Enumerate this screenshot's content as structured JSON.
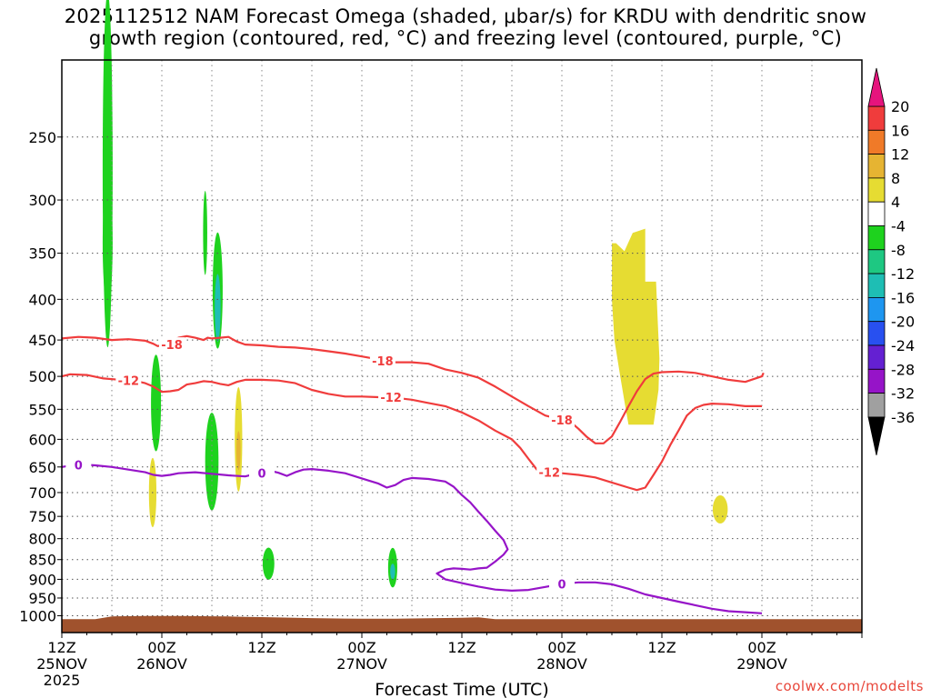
{
  "chart_data": {
    "type": "heatmap",
    "title_line1": "2025112512 NAM Forecast Omega (shaded, μbar/s) for KRDU with dendritic snow",
    "title_line2": "growth region (contoured, red, °C) and freezing level (contoured, purple, °C)",
    "xlabel": "Forecast Time (UTC)",
    "ylabel": "",
    "x_range_hours": [
      0,
      96
    ],
    "y_scale": "log-pressure",
    "y_range_hpa": [
      1050,
      200
    ],
    "grid": true,
    "x_ticks": [
      {
        "h": 0,
        "line1": "12Z",
        "line2": "25NOV",
        "line3": "2025"
      },
      {
        "h": 12,
        "line1": "00Z",
        "line2": "26NOV",
        "line3": ""
      },
      {
        "h": 24,
        "line1": "12Z",
        "line2": "",
        "line3": ""
      },
      {
        "h": 36,
        "line1": "00Z",
        "line2": "27NOV",
        "line3": ""
      },
      {
        "h": 48,
        "line1": "12Z",
        "line2": "",
        "line3": ""
      },
      {
        "h": 60,
        "line1": "00Z",
        "line2": "28NOV",
        "line3": ""
      },
      {
        "h": 72,
        "line1": "12Z",
        "line2": "",
        "line3": ""
      },
      {
        "h": 84,
        "line1": "00Z",
        "line2": "29NOV",
        "line3": ""
      }
    ],
    "y_ticks": [
      250,
      300,
      350,
      400,
      450,
      500,
      550,
      600,
      650,
      700,
      750,
      800,
      850,
      900,
      950,
      1000
    ],
    "colorbar": {
      "labels": [
        "20",
        "16",
        "12",
        "8",
        "4",
        "-4",
        "-8",
        "-12",
        "-16",
        "-20",
        "-24",
        "-28",
        "-32",
        "-36"
      ],
      "label_values": [
        20,
        16,
        12,
        8,
        4,
        -4,
        -8,
        -12,
        -16,
        -20,
        -24,
        -28,
        -32,
        -36
      ],
      "bands": [
        {
          "from": 20,
          "to": 16,
          "color": "#f03c3c"
        },
        {
          "from": 16,
          "to": 12,
          "color": "#f07a28"
        },
        {
          "from": 12,
          "to": 8,
          "color": "#e6b432"
        },
        {
          "from": 8,
          "to": 4,
          "color": "#e6dc32"
        },
        {
          "from": 4,
          "to": -4,
          "color": "#ffffff"
        },
        {
          "from": -4,
          "to": -8,
          "color": "#1ed21e"
        },
        {
          "from": -8,
          "to": -12,
          "color": "#1ec882"
        },
        {
          "from": -12,
          "to": -16,
          "color": "#1ebeb4"
        },
        {
          "from": -16,
          "to": -20,
          "color": "#1e96f0"
        },
        {
          "from": -20,
          "to": -24,
          "color": "#2850f0"
        },
        {
          "from": -24,
          "to": -28,
          "color": "#6420d2"
        },
        {
          "from": -28,
          "to": -32,
          "color": "#9614c8"
        },
        {
          "from": -32,
          "to": -36,
          "color": "#a0a0a0"
        }
      ],
      "top_arrow_color": "#e6147d",
      "bottom_arrow_color": "#000000"
    },
    "contours": [
      {
        "name": "-18",
        "label": "-18",
        "color": "#f03c3c",
        "points": [
          [
            0,
            448
          ],
          [
            2,
            446
          ],
          [
            4,
            447
          ],
          [
            6,
            450
          ],
          [
            8,
            449
          ],
          [
            10,
            451
          ],
          [
            11,
            455
          ],
          [
            11.5,
            458
          ],
          [
            12,
            457
          ],
          [
            13,
            452
          ],
          [
            14,
            447
          ],
          [
            15,
            445
          ],
          [
            16,
            447
          ],
          [
            17,
            450
          ],
          [
            17.5,
            447
          ],
          [
            18,
            448
          ],
          [
            19,
            447
          ],
          [
            20,
            446
          ],
          [
            21,
            452
          ],
          [
            22,
            456
          ],
          [
            24,
            457
          ],
          [
            26,
            459
          ],
          [
            28,
            460
          ],
          [
            30,
            462
          ],
          [
            32,
            465
          ],
          [
            34,
            468
          ],
          [
            36,
            472
          ],
          [
            38,
            476
          ],
          [
            40,
            480
          ],
          [
            42,
            480
          ],
          [
            44,
            482
          ],
          [
            46,
            490
          ],
          [
            48,
            495
          ],
          [
            50,
            502
          ],
          [
            52,
            515
          ],
          [
            54,
            530
          ],
          [
            56,
            545
          ],
          [
            58,
            560
          ],
          [
            60,
            567
          ],
          [
            61,
            570
          ],
          [
            62,
            582
          ],
          [
            63,
            596
          ],
          [
            64,
            607
          ],
          [
            65,
            607
          ],
          [
            66,
            595
          ],
          [
            67,
            570
          ],
          [
            68,
            545
          ],
          [
            69,
            522
          ],
          [
            70,
            504
          ],
          [
            71,
            496
          ],
          [
            72,
            494
          ],
          [
            74,
            493
          ],
          [
            76,
            495
          ],
          [
            78,
            500
          ],
          [
            80,
            505
          ],
          [
            82,
            508
          ],
          [
            84,
            500
          ],
          [
            84.2,
            495
          ]
        ]
      },
      {
        "name": "-12",
        "label": "-12",
        "color": "#f03c3c",
        "points": [
          [
            0,
            500
          ],
          [
            1,
            497
          ],
          [
            3,
            498
          ],
          [
            5,
            503
          ],
          [
            7,
            505
          ],
          [
            9,
            507
          ],
          [
            10,
            510
          ],
          [
            11,
            515
          ],
          [
            11.5,
            519
          ],
          [
            12,
            523
          ],
          [
            13,
            522
          ],
          [
            14,
            520
          ],
          [
            15,
            512
          ],
          [
            16,
            510
          ],
          [
            17,
            507
          ],
          [
            18,
            508
          ],
          [
            19,
            511
          ],
          [
            20,
            513
          ],
          [
            21,
            508
          ],
          [
            22,
            505
          ],
          [
            24,
            505
          ],
          [
            26,
            506
          ],
          [
            28,
            510
          ],
          [
            30,
            520
          ],
          [
            32,
            526
          ],
          [
            34,
            530
          ],
          [
            36,
            530
          ],
          [
            38,
            531
          ],
          [
            40,
            532
          ],
          [
            42,
            535
          ],
          [
            44,
            540
          ],
          [
            46,
            545
          ],
          [
            48,
            555
          ],
          [
            50,
            568
          ],
          [
            52,
            585
          ],
          [
            54,
            600
          ],
          [
            55,
            615
          ],
          [
            56,
            635
          ],
          [
            57,
            655
          ],
          [
            58,
            655
          ],
          [
            59,
            660
          ],
          [
            60,
            662
          ],
          [
            62,
            665
          ],
          [
            64,
            670
          ],
          [
            66,
            680
          ],
          [
            68,
            690
          ],
          [
            69,
            695
          ],
          [
            70,
            690
          ],
          [
            71,
            665
          ],
          [
            72,
            640
          ],
          [
            73,
            610
          ],
          [
            74,
            585
          ],
          [
            75,
            560
          ],
          [
            76,
            548
          ],
          [
            77,
            543
          ],
          [
            78,
            541
          ],
          [
            80,
            542
          ],
          [
            82,
            545
          ],
          [
            84,
            545
          ]
        ]
      },
      {
        "name": "0",
        "label": "0",
        "color": "#9614c8",
        "points": [
          [
            0,
            650
          ],
          [
            2,
            645
          ],
          [
            4,
            647
          ],
          [
            6,
            650
          ],
          [
            8,
            655
          ],
          [
            10,
            660
          ],
          [
            11,
            665
          ],
          [
            12,
            667
          ],
          [
            13,
            665
          ],
          [
            14,
            662
          ],
          [
            16,
            660
          ],
          [
            18,
            663
          ],
          [
            20,
            666
          ],
          [
            22,
            668
          ],
          [
            24,
            660
          ],
          [
            25,
            657
          ],
          [
            26,
            661
          ],
          [
            27,
            667
          ],
          [
            28,
            660
          ],
          [
            29,
            655
          ],
          [
            30,
            654
          ],
          [
            32,
            657
          ],
          [
            34,
            662
          ],
          [
            36,
            672
          ],
          [
            38,
            682
          ],
          [
            39,
            690
          ],
          [
            40,
            685
          ],
          [
            41,
            675
          ],
          [
            42,
            671
          ],
          [
            44,
            673
          ],
          [
            46,
            678
          ],
          [
            47,
            688
          ],
          [
            48,
            705
          ],
          [
            49,
            720
          ],
          [
            50,
            740
          ],
          [
            51,
            760
          ],
          [
            52,
            782
          ],
          [
            53,
            803
          ],
          [
            53.5,
            825
          ],
          [
            53,
            838
          ],
          [
            52,
            855
          ],
          [
            51,
            870
          ],
          [
            50,
            872
          ],
          [
            49,
            875
          ],
          [
            48,
            873
          ],
          [
            47,
            872
          ],
          [
            46,
            875
          ],
          [
            45,
            885
          ],
          [
            46,
            900
          ],
          [
            48,
            910
          ],
          [
            50,
            919
          ],
          [
            52,
            927
          ],
          [
            54,
            930
          ],
          [
            56,
            928
          ],
          [
            58,
            920
          ],
          [
            60,
            912
          ],
          [
            62,
            908
          ],
          [
            64,
            908
          ],
          [
            66,
            913
          ],
          [
            68,
            925
          ],
          [
            70,
            940
          ],
          [
            72,
            950
          ],
          [
            74,
            960
          ],
          [
            76,
            970
          ],
          [
            78,
            980
          ],
          [
            80,
            987
          ],
          [
            82,
            990
          ],
          [
            84,
            993
          ]
        ]
      }
    ],
    "omega_regions": [
      {
        "name": "green-columns",
        "color": "#1ed21e",
        "ellipses": [
          [
            5.5,
            275,
            0.6,
            130
          ],
          [
            5.5,
            340,
            0.6,
            60
          ],
          [
            11.3,
            540,
            0.6,
            75
          ],
          [
            17.2,
            330,
            0.25,
            40
          ],
          [
            18.7,
            390,
            0.6,
            65
          ],
          [
            18.0,
            640,
            0.8,
            90
          ],
          [
            24.8,
            860,
            0.7,
            40
          ],
          [
            39.7,
            870,
            0.55,
            50
          ]
        ]
      },
      {
        "name": "cyan-cores",
        "color": "#1ebeb4",
        "ellipses": [
          [
            18.7,
            410,
            0.35,
            40
          ],
          [
            39.7,
            880,
            0.3,
            20
          ]
        ]
      },
      {
        "name": "yellow-regions",
        "color": "#e6dc32",
        "ellipses": [
          [
            10.9,
            700,
            0.45,
            70
          ],
          [
            21.2,
            600,
            0.45,
            90
          ],
          [
            79.0,
            735,
            0.9,
            30
          ]
        ]
      },
      {
        "name": "orange-cores",
        "color": "#e6b432",
        "ellipses": [
          [
            21.2,
            620,
            0.25,
            35
          ]
        ]
      },
      {
        "name": "yellow-mass",
        "color": "#e6dc32",
        "polygon": [
          [
            66.0,
            340
          ],
          [
            66.5,
            340
          ],
          [
            67.0,
            344
          ],
          [
            67.5,
            348
          ],
          [
            68.5,
            330
          ],
          [
            70.0,
            326
          ],
          [
            70.0,
            380
          ],
          [
            71.3,
            380
          ],
          [
            71.5,
            425
          ],
          [
            71.7,
            475
          ],
          [
            71.6,
            520
          ],
          [
            71.0,
            575
          ],
          [
            68.0,
            575
          ],
          [
            67.6,
            545
          ],
          [
            67.0,
            500
          ],
          [
            66.3,
            450
          ],
          [
            66.0,
            400
          ]
        ]
      }
    ],
    "ground": {
      "color": "#a0522d",
      "top_hpa": 1010
    }
  },
  "credit": "coolwx.com/modelts"
}
